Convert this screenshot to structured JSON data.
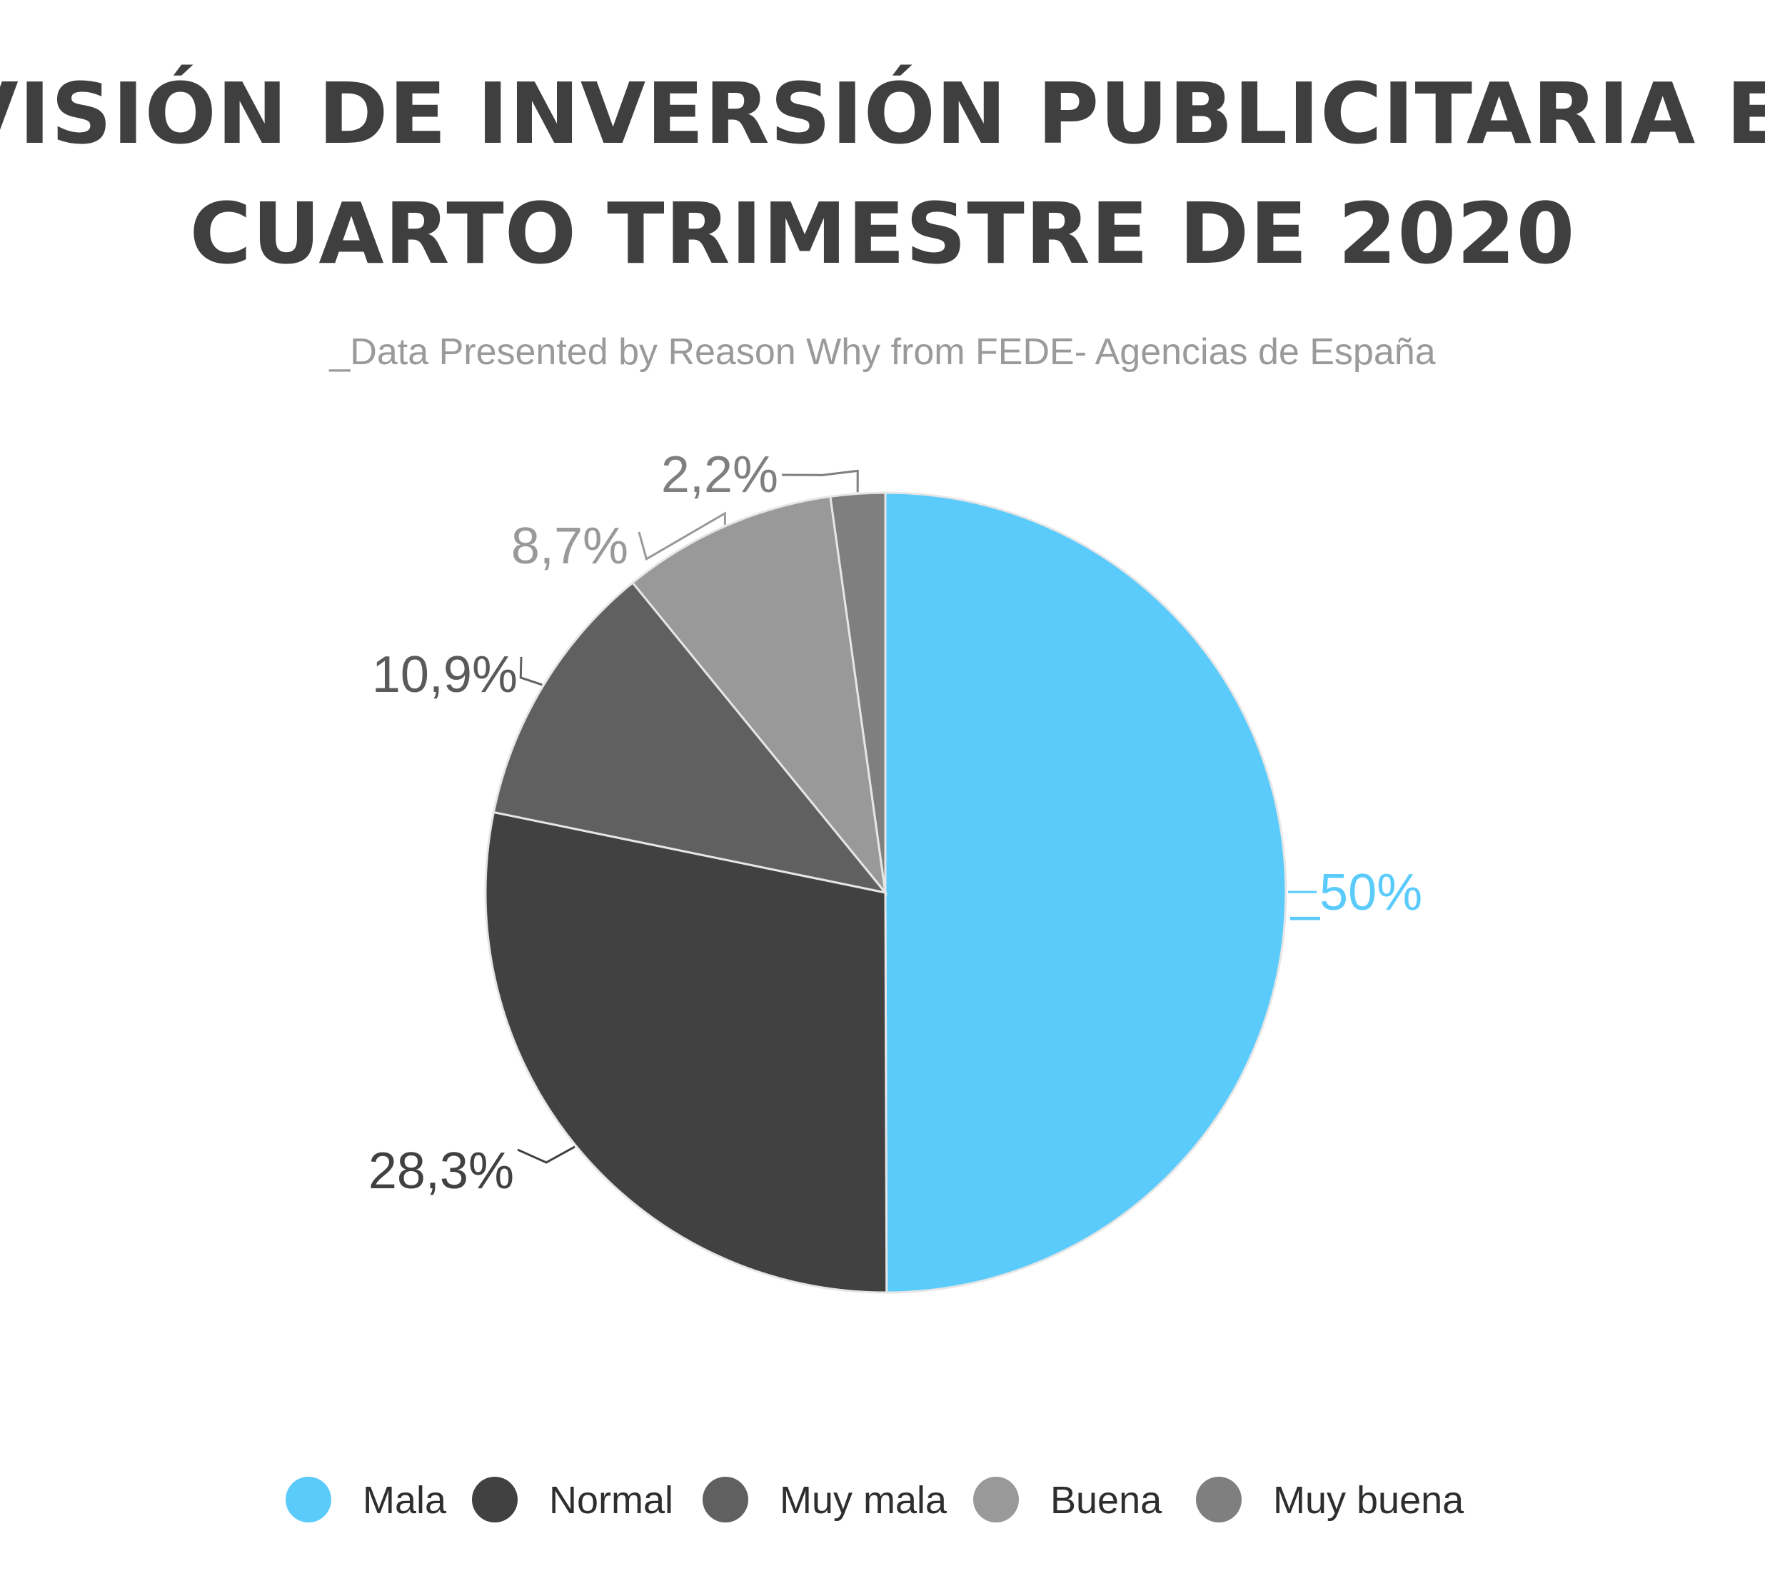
{
  "chart_data": {
    "type": "pie",
    "title": [
      "PREVISIÓN DE INVERSIÓN PUBLICITARIA EN EL",
      "CUARTO TRIMESTRE DE 2020"
    ],
    "subtitle": "_Data Presented by Reason Why from FEDE- Agencias de España",
    "legend_position": "bottom",
    "slices": [
      {
        "name": "Mala",
        "value": 50,
        "label": "_50%",
        "color": "#5bcbfc"
      },
      {
        "name": "Normal",
        "value": 28.3,
        "label": "28,3%",
        "color": "#414141"
      },
      {
        "name": "Muy mala",
        "value": 10.9,
        "label": "10,9%",
        "color": "#606060"
      },
      {
        "name": "Buena",
        "value": 8.7,
        "label": "8,7%",
        "color": "#999999"
      },
      {
        "name": "Muy buena",
        "value": 2.2,
        "label": "2,2%",
        "color": "#7f7f7f"
      }
    ]
  }
}
